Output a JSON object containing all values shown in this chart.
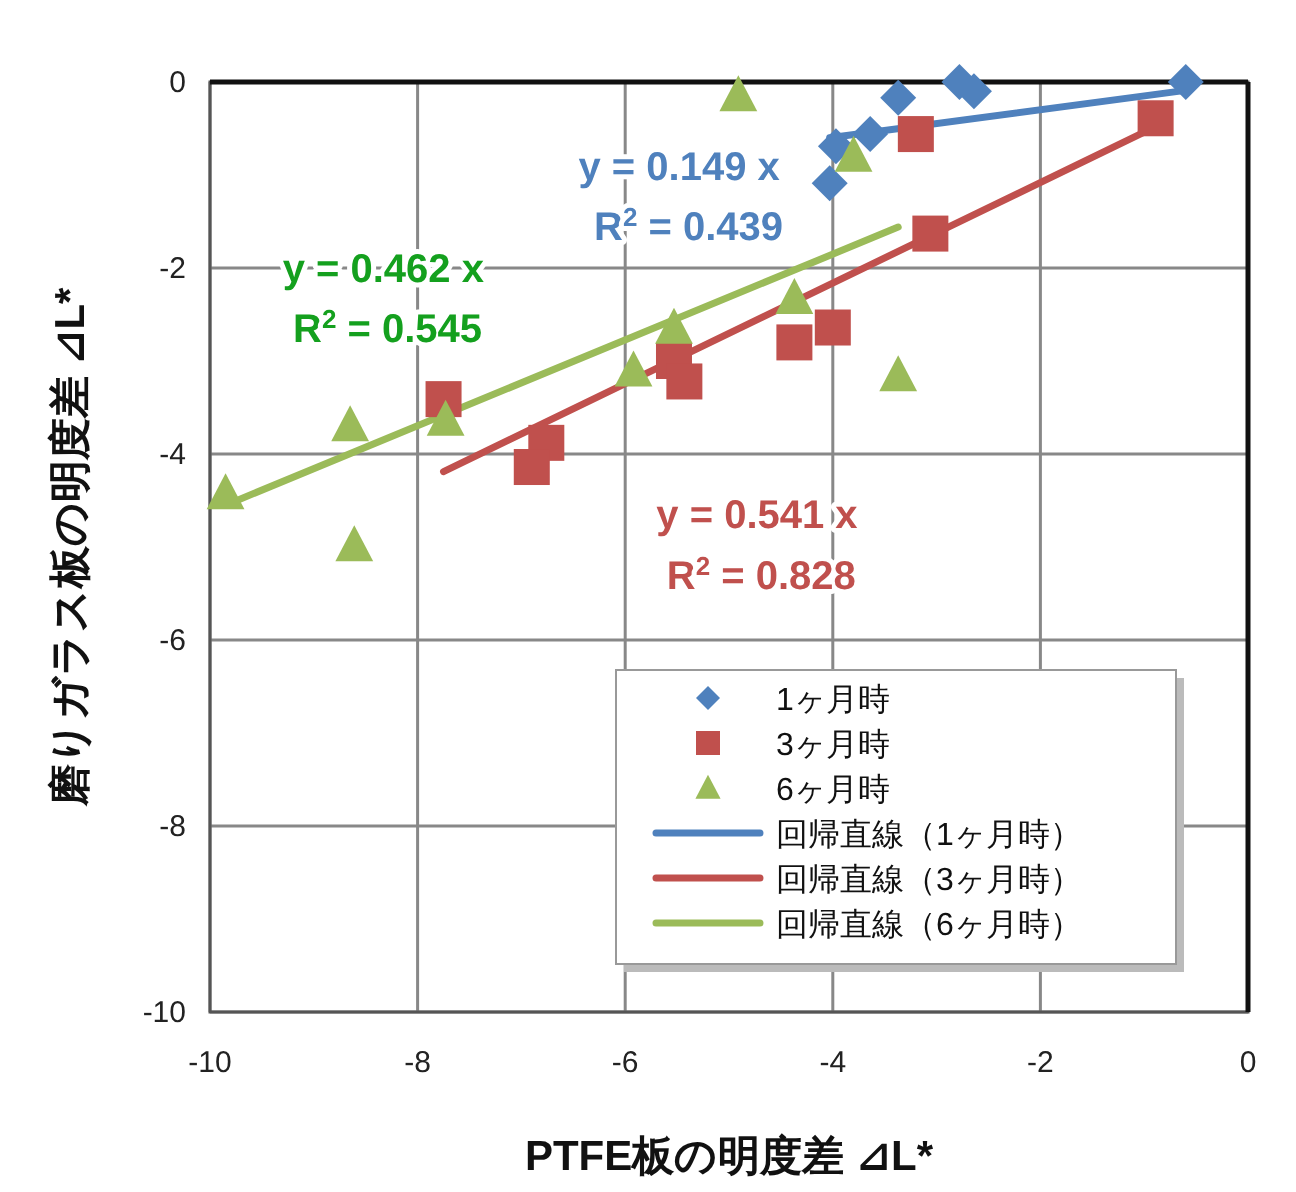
{
  "chart_data": {
    "type": "scatter",
    "xlabel": "PTFE板の明度差 ⊿L*",
    "ylabel": "磨りガラス板の明度差 ⊿L*",
    "xlim": [
      -10,
      0
    ],
    "ylim": [
      -10,
      0
    ],
    "xticks": [
      -10,
      -8,
      -6,
      -4,
      -2,
      0
    ],
    "yticks": [
      -10,
      -8,
      -6,
      -4,
      -2,
      0
    ],
    "grid": true,
    "legend": "bottom right",
    "series": [
      {
        "name": "1ヶ月時",
        "marker": "diamond",
        "color": "#4f81bd",
        "x": [
          -0.6,
          -2.78,
          -2.64,
          -3.37,
          -3.64,
          -3.97,
          -4.03
        ],
        "values": [
          0,
          0,
          -0.1,
          -0.17,
          -0.56,
          -0.69,
          -1.09
        ]
      },
      {
        "name": "3ヶ月時",
        "marker": "square",
        "color": "#c0504d",
        "x": [
          -7.75,
          -6.76,
          -6.9,
          -5.53,
          -5.43,
          -4.37,
          -4.0,
          -3.06,
          -3.2,
          -0.89
        ],
        "values": [
          -3.41,
          -3.88,
          -4.14,
          -3.0,
          -3.22,
          -2.8,
          -2.64,
          -1.63,
          -0.56,
          -0.39
        ]
      },
      {
        "name": "6ヶ月時",
        "marker": "triangle",
        "color": "#9bbb59",
        "x": [
          -9.85,
          -8.65,
          -8.61,
          -7.73,
          -5.92,
          -5.53,
          -4.91,
          -3.8,
          -4.37,
          -3.37
        ],
        "values": [
          -4.42,
          -3.69,
          -4.98,
          -3.63,
          -3.1,
          -2.64,
          -0.14,
          -0.79,
          -2.32,
          -3.15
        ]
      },
      {
        "name": "回帰直線（1ヶ月時）",
        "type": "line",
        "marker": "none",
        "color": "#4f81bd",
        "x": [
          -4.03,
          -0.6
        ],
        "values": [
          -0.6,
          -0.09
        ]
      },
      {
        "name": "回帰直線（3ヶ月時）",
        "type": "line",
        "marker": "none",
        "color": "#c0504d",
        "x": [
          -7.75,
          -0.89
        ],
        "values": [
          -4.19,
          -0.48
        ]
      },
      {
        "name": "回帰直線（6ヶ月時）",
        "type": "line",
        "marker": "none",
        "color": "#9bbb59",
        "x": [
          -9.85,
          -3.37
        ],
        "values": [
          -4.55,
          -1.56
        ]
      }
    ],
    "annotations": [
      "y = 0.149 x",
      "R$^{2}$ = 0.439",
      "y = 0.541 x",
      "R$^{2}$ = 0.828",
      "y = 0.462 x",
      "R$^{2}$ = 0.545"
    ]
  }
}
